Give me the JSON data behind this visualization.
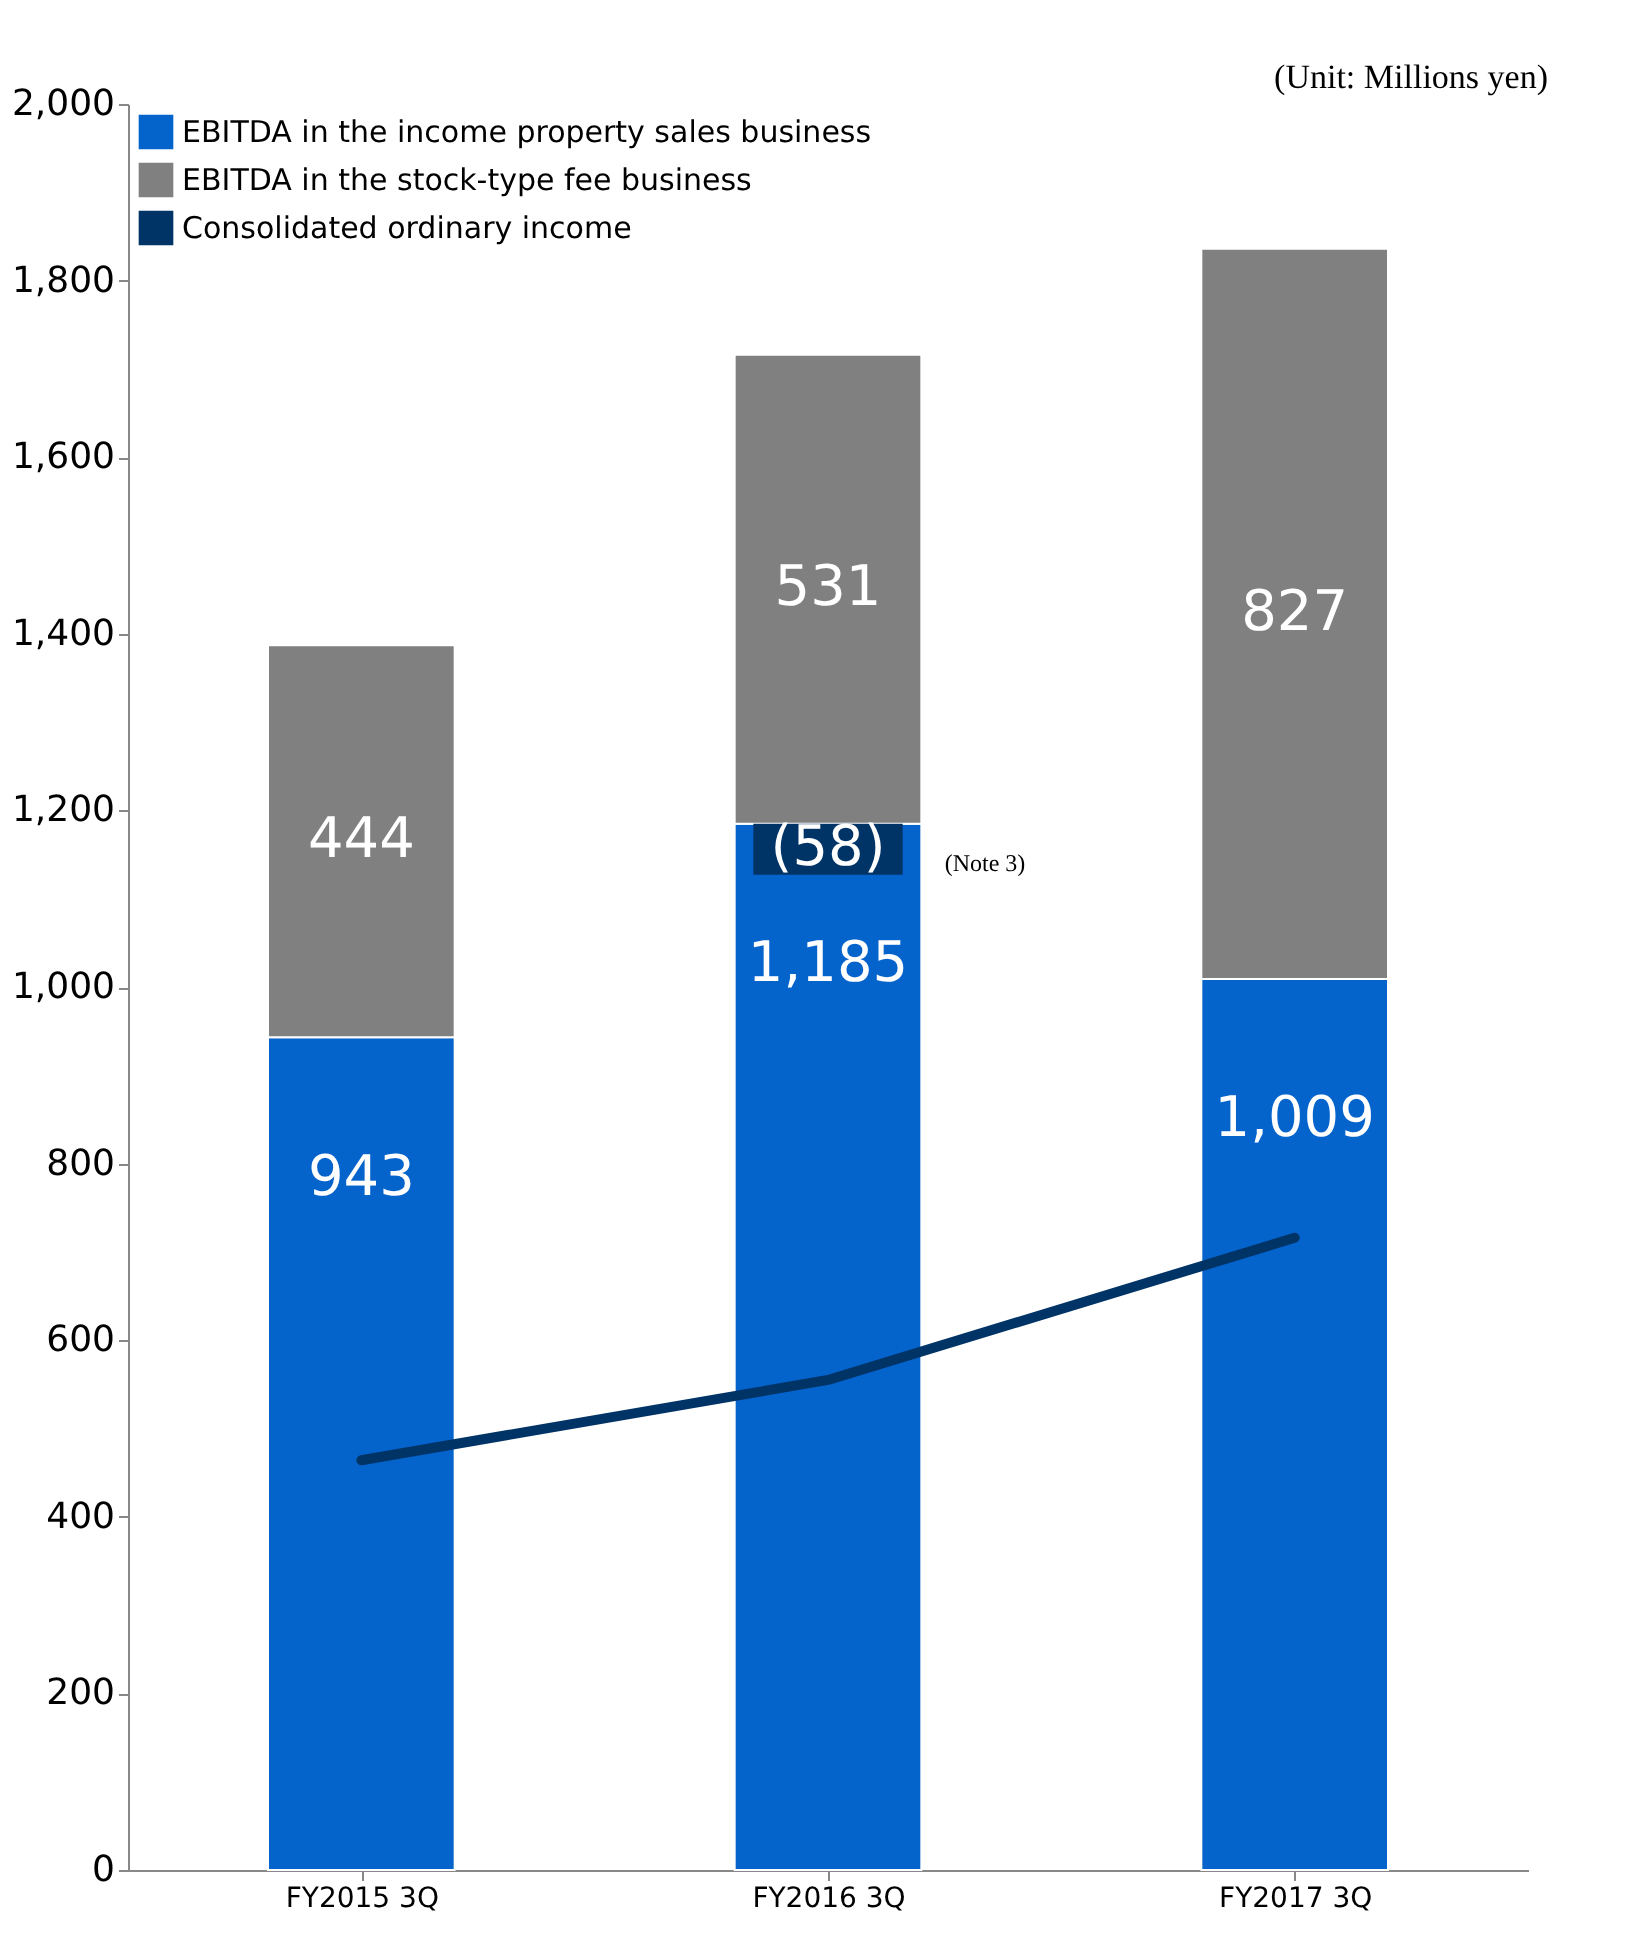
{
  "chart_data": {
    "type": "bar",
    "stacked": true,
    "categories": [
      "FY2015 3Q",
      "FY2016 3Q",
      "FY2017 3Q"
    ],
    "series": [
      {
        "name": "EBITDA in the income property sales business",
        "color": "#0563cc",
        "values": [
          943,
          1185,
          1009
        ],
        "value_labels": [
          "943",
          "1,185",
          "1,009"
        ]
      },
      {
        "name": "EBITDA in the stock-type fee business",
        "color": "#808080",
        "values": [
          444,
          531,
          827
        ],
        "value_labels": [
          "444",
          "531",
          "827"
        ]
      },
      {
        "type": "bar",
        "color": "#003366",
        "base": [
          null,
          1185,
          null
        ],
        "values": [
          null,
          -58,
          null
        ],
        "value_labels": [
          null,
          "(58)",
          null
        ]
      },
      {
        "type": "line",
        "name": "Consolidated ordinary income",
        "color": "#003366",
        "values": [
          464,
          555,
          716
        ]
      }
    ],
    "ylim": [
      0,
      2000
    ],
    "yticks": [
      {
        "value": 0,
        "label": "0"
      },
      {
        "value": 200,
        "label": "200"
      },
      {
        "value": 400,
        "label": "400"
      },
      {
        "value": 600,
        "label": "600"
      },
      {
        "value": 800,
        "label": "800"
      },
      {
        "value": 1000,
        "label": "1,000"
      },
      {
        "value": 1200,
        "label": "1,200"
      },
      {
        "value": 1400,
        "label": "1,400"
      },
      {
        "value": 1600,
        "label": "1,600"
      },
      {
        "value": 1800,
        "label": "1,800"
      },
      {
        "value": 2000,
        "label": "2,000"
      }
    ],
    "grid": false,
    "legend": "top left",
    "annotations": [
      "(Unit: Millions yen)",
      "(Note 3)"
    ]
  }
}
